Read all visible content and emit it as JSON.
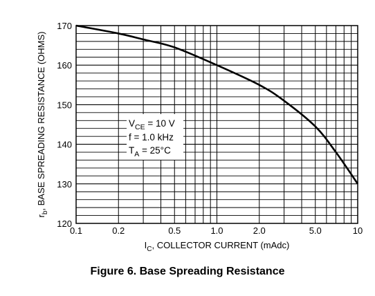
{
  "chart_data": {
    "type": "line",
    "x_scale": "log",
    "y_scale": "linear",
    "xlim": [
      0.1,
      10
    ],
    "ylim": [
      120,
      170
    ],
    "x_tick_labels": [
      "0.1",
      "0.2",
      "0.5",
      "1.0",
      "2.0",
      "5.0",
      "10"
    ],
    "x_tick_values": [
      0.1,
      0.2,
      0.5,
      1.0,
      2.0,
      5.0,
      10
    ],
    "y_tick_labels": [
      "120",
      "130",
      "140",
      "150",
      "160",
      "170"
    ],
    "y_tick_values": [
      120,
      130,
      140,
      150,
      160,
      170
    ],
    "grid": true,
    "xlabel": {
      "main": "I",
      "sub": "C",
      "rest": ", COLLECTOR CURRENT (mAdc)"
    },
    "ylabel": {
      "main": "r",
      "sub": "b",
      "rest": ", BASE SPREADING RESISTANCE (OHMS)"
    },
    "series": [
      {
        "x": [
          0.1,
          0.2,
          0.3,
          0.5,
          1.0,
          2.0,
          3.0,
          5.0,
          7.0,
          10
        ],
        "y": [
          170,
          168,
          166.5,
          164.5,
          160,
          155,
          151,
          144.5,
          138,
          130
        ]
      }
    ],
    "annotation": [
      {
        "main": "V",
        "sub": "CE",
        "rest": " = 10 V"
      },
      {
        "main": "f = 1.0 kHz",
        "sub": "",
        "rest": ""
      },
      {
        "main": "T",
        "sub": "A",
        "rest": " = 25°C"
      }
    ]
  },
  "caption": "Figure 6. Base Spreading Resistance"
}
